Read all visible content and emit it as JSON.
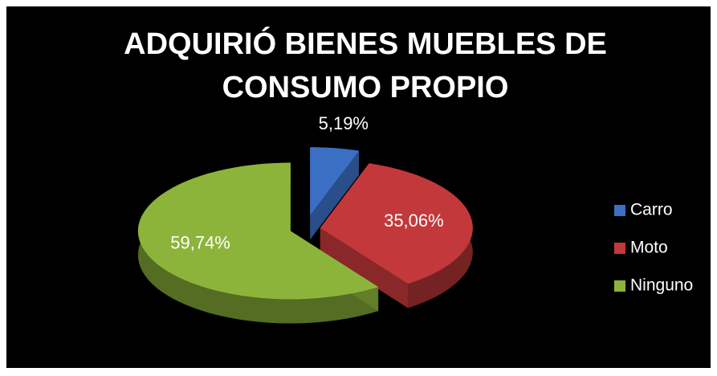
{
  "chart_data": {
    "type": "pie3d",
    "title": "ADQUIRIÓ BIENES MUEBLES DE CONSUMO PROPIO",
    "categories": [
      "Carro",
      "Moto",
      "Ninguno"
    ],
    "values": [
      5.19,
      35.06,
      59.74
    ],
    "value_labels": [
      "5,19%",
      "35,06%",
      "59,74%"
    ],
    "colors": [
      "#3b6fc4",
      "#c3383b",
      "#8db43a"
    ],
    "legend": "right"
  }
}
